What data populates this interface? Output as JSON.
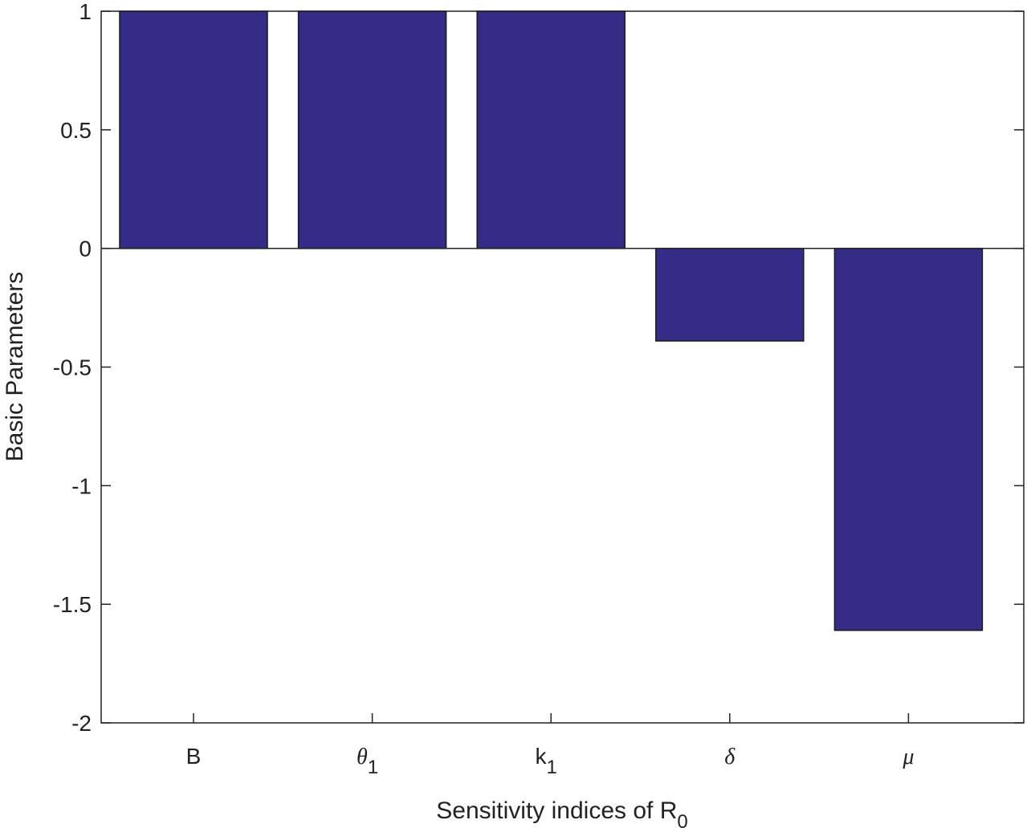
{
  "chart_data": {
    "type": "bar",
    "categories": [
      {
        "main": "B",
        "sub": "",
        "greek": false
      },
      {
        "main": "θ",
        "sub": "1",
        "greek": true
      },
      {
        "main": "k",
        "sub": "1",
        "greek": false
      },
      {
        "main": "δ",
        "sub": "",
        "greek": true
      },
      {
        "main": "μ",
        "sub": "",
        "greek": true
      }
    ],
    "values": [
      1,
      1,
      1,
      -0.39,
      -1.61
    ],
    "xlabel": {
      "main": "Sensitivity indices of R",
      "sub": "0"
    },
    "ylabel": "Basic Parameters",
    "ylim": [
      -2,
      1
    ],
    "yticks": [
      {
        "value": 1,
        "label": "1"
      },
      {
        "value": 0.5,
        "label": "0.5"
      },
      {
        "value": 0,
        "label": "0"
      },
      {
        "value": -0.5,
        "label": "-0.5"
      },
      {
        "value": -1,
        "label": "-1"
      },
      {
        "value": -1.5,
        "label": "-1.5"
      },
      {
        "value": -2,
        "label": "-2"
      }
    ],
    "bar_color": "#342c87",
    "grid": false,
    "zero_line": true
  }
}
